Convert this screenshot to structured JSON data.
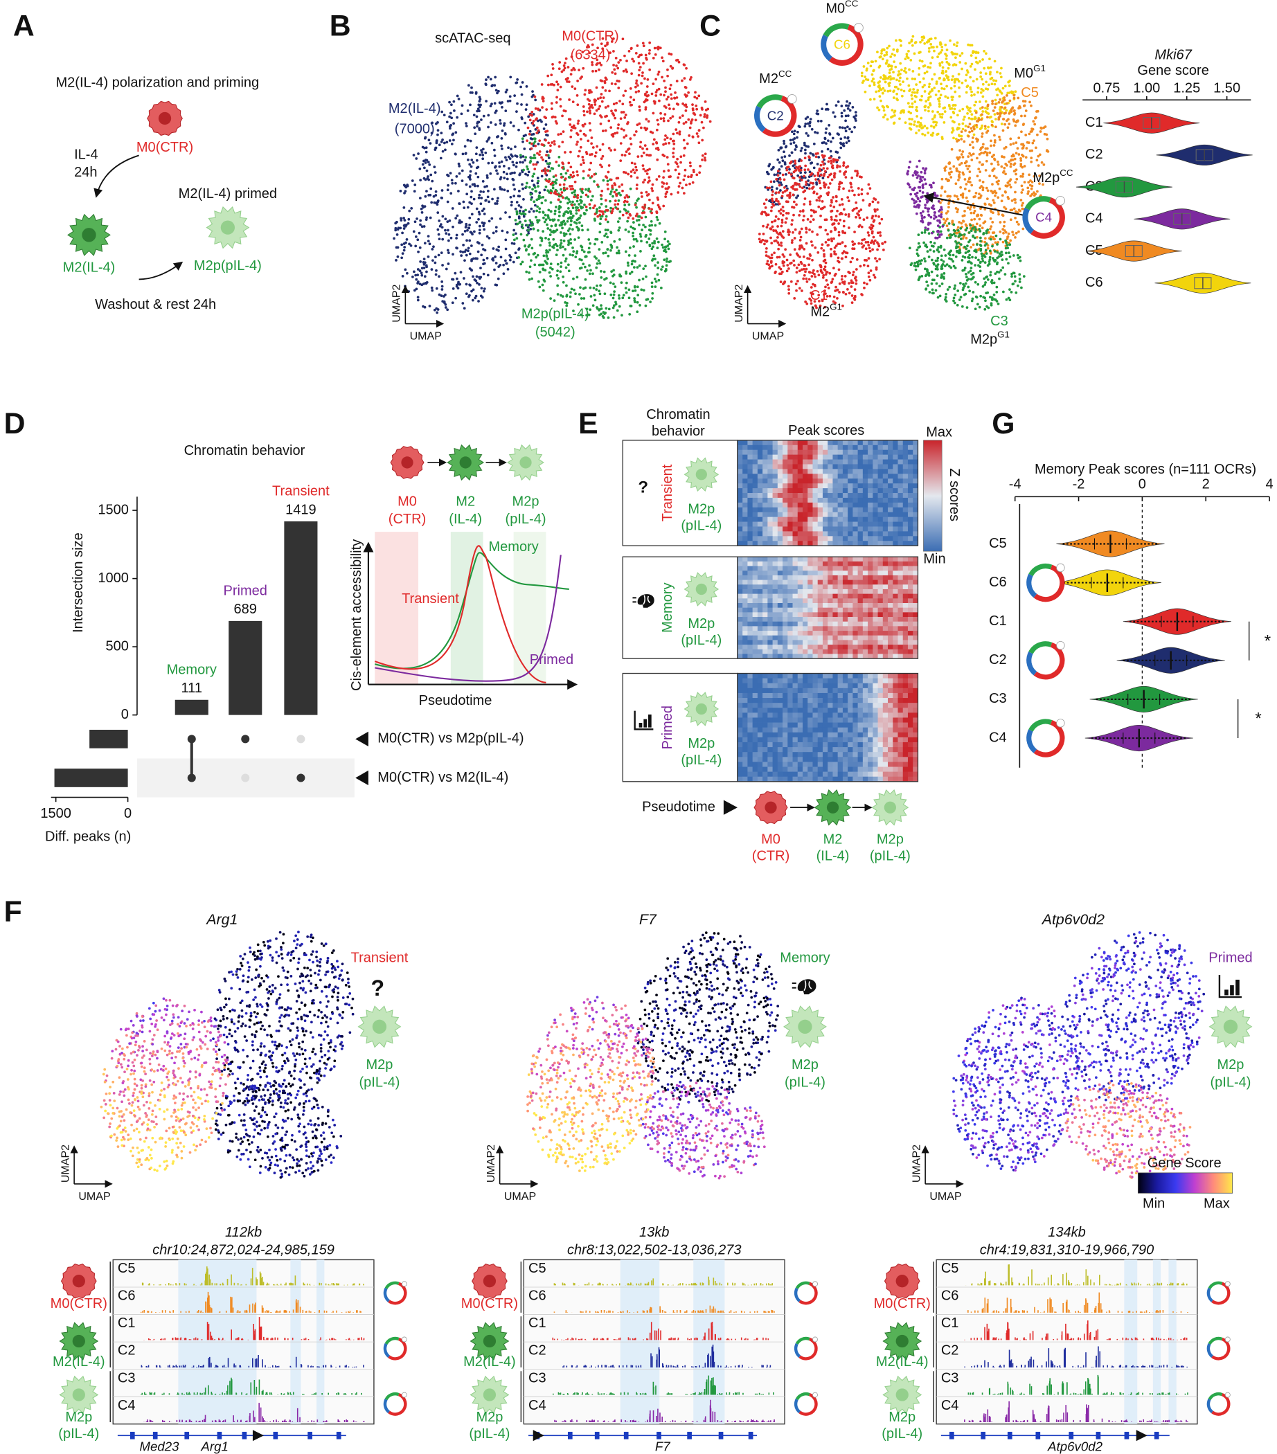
{
  "panels": {
    "A": {
      "letter": "A",
      "title": "M2(IL-4) polarization and priming",
      "m0": "M0(CTR)",
      "treatment": "IL-4",
      "duration": "24h",
      "primed_title": "M2(IL-4) primed",
      "m2": "M2(IL-4)",
      "m2p": "M2p(pIL-4)",
      "washout": "Washout & rest 24h"
    },
    "B": {
      "letter": "B",
      "title": "scATAC-seq",
      "x_label": "UMAP",
      "y_label": "UMAP2",
      "groups": [
        {
          "name": "M2(IL-4)",
          "count": "(7000)",
          "color": "#1f2d6e"
        },
        {
          "name": "M0(CTR)",
          "count": "(6334)",
          "color": "#e02a2a"
        },
        {
          "name": "M2p(pIL-4)",
          "count": "(5042)",
          "color": "#22983f"
        }
      ]
    },
    "C": {
      "letter": "C",
      "x_label": "UMAP",
      "y_label": "UMAP2",
      "states": [
        {
          "base": "M0",
          "sup": "CC",
          "cluster": "C6",
          "color": "#f2d40c"
        },
        {
          "base": "M2",
          "sup": "CC",
          "cluster": "C2",
          "color": "#1f2d6e"
        },
        {
          "base": "M2p",
          "sup": "CC",
          "cluster": "C4",
          "color": "#7c2a9e"
        },
        {
          "base": "M0",
          "sup": "G1",
          "cluster": "C5",
          "color": "#f08a22"
        },
        {
          "base": "M2",
          "sup": "G1",
          "cluster": "C1",
          "color": "#e02a2a"
        },
        {
          "base": "M2p",
          "sup": "G1",
          "cluster": "C3",
          "color": "#22983f"
        }
      ],
      "violin": {
        "gene": "Mki67",
        "title": "Gene score",
        "xlim": [
          0.6,
          1.65
        ],
        "xticks": [
          {
            "value": 0.75,
            "label": "0.75"
          },
          {
            "value": 1.0,
            "label": "1.00"
          },
          {
            "value": 1.25,
            "label": "1.25"
          },
          {
            "value": 1.5,
            "label": "1.50"
          }
        ],
        "categories": [
          "C1",
          "C2",
          "C3",
          "C4",
          "C5",
          "C6"
        ],
        "colors": [
          "#e02a2a",
          "#1f2d6e",
          "#22983f",
          "#7c2a9e",
          "#f08a22",
          "#f2d40c"
        ],
        "medians": [
          1.03,
          1.36,
          0.86,
          1.22,
          0.92,
          1.35
        ]
      }
    },
    "D": {
      "letter": "D",
      "title": "Chromatin behavior",
      "y_label": "Intersection size",
      "categories": [
        "Memory",
        "Primed",
        "Transient"
      ],
      "colors": [
        "#22983f",
        "#7c2a9e",
        "#e02a2a"
      ],
      "values": [
        111,
        689,
        1419
      ],
      "ylim": [
        0,
        1600
      ],
      "yticks": [
        0,
        500,
        1000,
        1500
      ],
      "sets": [
        "M0(CTR) vs M2p(pIL-4)",
        "M0(CTR) vs M2(IL-4)"
      ],
      "set_sizes": [
        800,
        1530
      ],
      "set_xlim": [
        0,
        1600
      ],
      "set_xticks": [
        1500,
        0
      ],
      "set_label": "Diff. peaks (n)",
      "membership": [
        [
          1,
          1
        ],
        [
          1,
          0
        ],
        [
          0,
          1
        ]
      ],
      "schematic": {
        "stages": [
          [
            "M0",
            "(CTR)"
          ],
          [
            "M2",
            "(IL-4)"
          ],
          [
            "M2p",
            "(pIL-4)"
          ]
        ],
        "stage_colors": [
          "#e02a2a",
          "#22983f",
          "#22983f"
        ],
        "y_label": "Cis-element accessibility",
        "x_label": "Pseudotime"
      }
    },
    "E": {
      "letter": "E",
      "header": [
        "Chromatin",
        "behavior"
      ],
      "title": "Peak scores",
      "scale_max": "Max",
      "scale_min": "Min",
      "scale_label": "Z scores",
      "rows": [
        {
          "symbol": "?",
          "behavior": "Transient",
          "color": "#e02a2a",
          "cell": [
            "M2p",
            "(pIL-4)"
          ]
        },
        {
          "behavior": "Memory",
          "color": "#22983f",
          "cell": [
            "M2p",
            "(pIL-4)"
          ]
        },
        {
          "behavior": "Primed",
          "color": "#7c2a9e",
          "cell": [
            "M2p",
            "(pIL-4)"
          ]
        }
      ],
      "pseudotime": "Pseudotime"
    },
    "G": {
      "letter": "G",
      "title": "Memory Peak scores (n=111 OCRs)",
      "xlim": [
        -4,
        4
      ],
      "xticks": [
        -4,
        -2,
        0,
        2,
        4
      ],
      "categories": [
        "C5",
        "C6",
        "C1",
        "C2",
        "C3",
        "C4"
      ],
      "colors": [
        "#f08a22",
        "#f2d40c",
        "#e02a2a",
        "#1f2d6e",
        "#22983f",
        "#7c2a9e"
      ],
      "medians": [
        -1.0,
        -1.1,
        1.1,
        0.9,
        0.05,
        -0.1
      ],
      "significance": [
        "*",
        "*"
      ]
    },
    "F": {
      "letter": "F",
      "x_label": "UMAP",
      "y_label": "UMAP2",
      "legend_title": "Gene Score",
      "legend_min": "Min",
      "legend_max": "Max",
      "cell_labels": [
        "M0(CTR)",
        "M2(IL-4)",
        "M2p",
        "(pIL-4)"
      ],
      "tracks": [
        "C5",
        "C6",
        "C1",
        "C2",
        "C3",
        "C4"
      ],
      "track_colors": [
        "#bdbd2a",
        "#f08a22",
        "#e02a2a",
        "#1f2d9e",
        "#22983f",
        "#8a2aa8"
      ],
      "genes": [
        {
          "gene": "Arg1",
          "behavior": "Transient",
          "color": "#e02a2a",
          "symbol": "?",
          "cell": [
            "M2p",
            "(pIL-4)"
          ],
          "span": "112kb",
          "locus": "chr10:24,872,024-24,985,159",
          "annotations": [
            "Med23",
            "Arg1"
          ]
        },
        {
          "gene": "F7",
          "behavior": "Memory",
          "color": "#22983f",
          "cell": [
            "M2p",
            "(pIL-4)"
          ],
          "span": "13kb",
          "locus": "chr8:13,022,502-13,036,273",
          "annotations": [
            "F7"
          ]
        },
        {
          "gene": "Atp6v0d2",
          "behavior": "Primed",
          "color": "#7c2a9e",
          "cell": [
            "M2p",
            "(pIL-4)"
          ],
          "span": "134kb",
          "locus": "chr4:19,831,310-19,966,790",
          "annotations": [
            "Atp6v0d2"
          ]
        }
      ]
    }
  }
}
